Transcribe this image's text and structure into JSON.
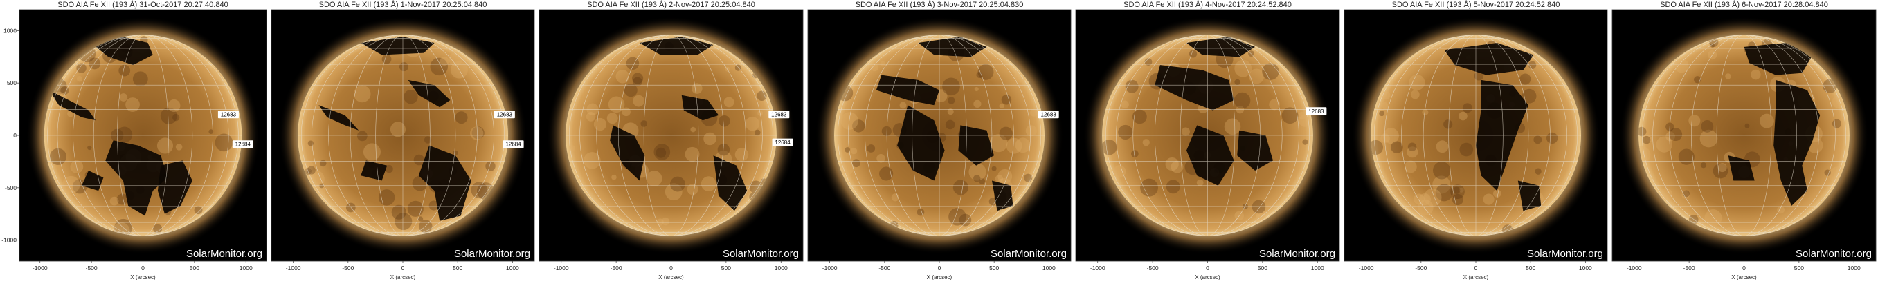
{
  "panels": [
    {
      "title": "SDO AIA Fe XII (193 Å) 31-Oct-2017 20:27:40.840",
      "regions": [
        {
          "label": "12683",
          "lon_deg": 55,
          "lat_deg": 12
        },
        {
          "label": "12684",
          "lon_deg": 72,
          "lat_deg": -5
        }
      ],
      "watermark": "SolarMonitor.org",
      "x_axis_label": "X (arcsec)",
      "y_axis_label": "",
      "x_ticks": [
        "-1000",
        "-500",
        "0",
        "500",
        "1000"
      ],
      "y_ticks": [
        "1000",
        "500",
        "0",
        "-500",
        "-1000"
      ]
    },
    {
      "title": "SDO AIA Fe XII (193 Å) 1-Nov-2017 20:25:04.840",
      "regions": [
        {
          "label": "12683",
          "lon_deg": 68,
          "lat_deg": 12
        },
        {
          "label": "12684",
          "lon_deg": 84,
          "lat_deg": -5
        }
      ],
      "watermark": "SolarMonitor.org",
      "x_axis_label": "X (arcsec)",
      "y_axis_label": "",
      "x_ticks": [
        "-1000",
        "-500",
        "0",
        "500",
        "1000"
      ],
      "y_ticks": []
    },
    {
      "title": "SDO AIA Fe XII (193 Å) 2-Nov-2017 20:25:04.840",
      "regions": [
        {
          "label": "12683",
          "lon_deg": 80,
          "lat_deg": 12
        },
        {
          "label": "12684",
          "lon_deg": 90,
          "lat_deg": -4
        }
      ],
      "watermark": "SolarMonitor.org",
      "x_axis_label": "X (arcsec)",
      "y_axis_label": "",
      "x_ticks": [
        "-1000",
        "-500",
        "0",
        "500",
        "1000"
      ],
      "y_ticks": []
    },
    {
      "title": "SDO AIA Fe XII (193 Å) 3-Nov-2017 20:25:04.830",
      "regions": [
        {
          "label": "12683",
          "lon_deg": 90,
          "lat_deg": 12
        }
      ],
      "watermark": "SolarMonitor.org",
      "x_axis_label": "X (arcsec)",
      "y_axis_label": "",
      "x_ticks": [
        "-1000",
        "-500",
        "0",
        "500",
        "1000"
      ],
      "y_ticks": []
    },
    {
      "title": "SDO AIA Fe XII (193 Å) 4-Nov-2017 20:24:52.840",
      "regions": [
        {
          "label": "12683",
          "lon_deg": 90,
          "lat_deg": 14
        }
      ],
      "watermark": "SolarMonitor.org",
      "x_axis_label": "X (arcsec)",
      "y_axis_label": "",
      "x_ticks": [
        "-1000",
        "-500",
        "0",
        "500",
        "1000"
      ],
      "y_ticks": []
    },
    {
      "title": "SDO AIA Fe XII (193 Å) 5-Nov-2017 20:24:52.840",
      "regions": [],
      "watermark": "SolarMonitor.org",
      "x_axis_label": "X (arcsec)",
      "y_axis_label": "",
      "x_ticks": [
        "-1000",
        "-500",
        "0",
        "500",
        "1000"
      ],
      "y_ticks": []
    },
    {
      "title": "SDO AIA Fe XII (193 Å) 6-Nov-2017 20:28:04.840",
      "regions": [],
      "watermark": "SolarMonitor.org",
      "x_axis_label": "X (arcsec)",
      "y_axis_label": "",
      "x_ticks": [
        "-1000",
        "-500",
        "0",
        "500",
        "1000"
      ],
      "y_ticks": []
    }
  ],
  "colors": {
    "sun_core": "#8a5a22",
    "sun_mid": "#b07a36",
    "sun_limb": "#ecc98b",
    "corona": "#f4ddaa",
    "coronal_hole": "#0c0602",
    "grid": "#e8e0d0",
    "background": "#000000"
  }
}
